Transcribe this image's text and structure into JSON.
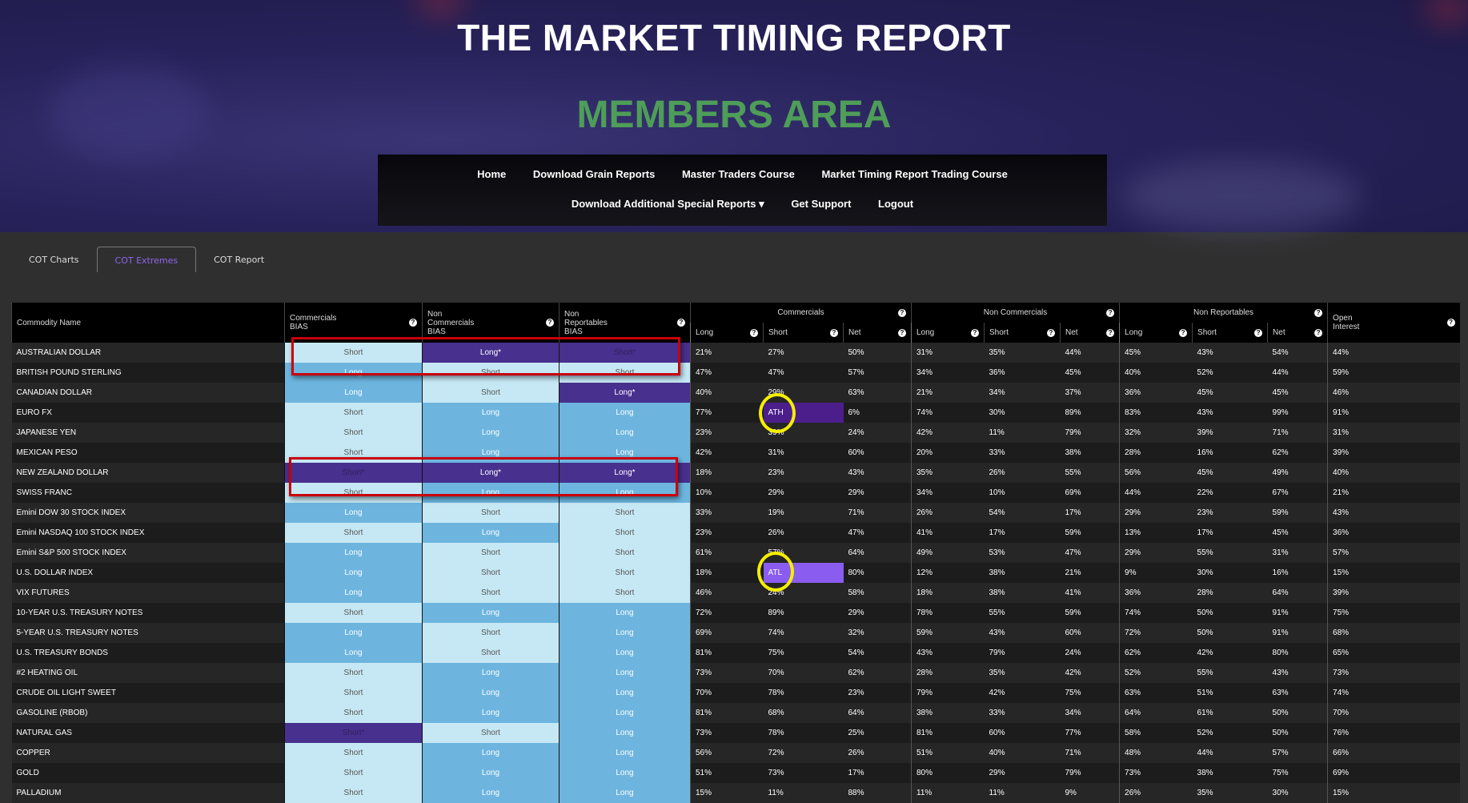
{
  "header": {
    "title": "THE MARKET TIMING REPORT",
    "subtitle": "MEMBERS AREA"
  },
  "nav": {
    "row1": [
      "Home",
      "Download Grain Reports",
      "Master Traders Course",
      "Market Timing Report Trading Course"
    ],
    "row2": [
      "Download Additional Special Reports ▾",
      "Get Support",
      "Logout"
    ]
  },
  "tabs": [
    {
      "label": "COT Charts"
    },
    {
      "label": "COT Extremes",
      "active": true
    },
    {
      "label": "COT Report"
    }
  ],
  "colors": {
    "short": "#c6e8f4",
    "long": "#6db5df",
    "extreme": "#47308e",
    "ath": "#4b1e8c",
    "atl": "#8a5cf0",
    "accent_tab": "#9166ee",
    "members": "#4e9d58"
  },
  "table": {
    "headers": {
      "name": "Commodity Name",
      "comm_bias": "Commercials BIAS",
      "noncomm_bias": "Non Commercials BIAS",
      "nonrep_bias": "Non Reportables BIAS",
      "commercials": "Commercials",
      "noncommercials": "Non Commercials",
      "nonreportables": "Non Reportables",
      "open_interest": "Open Interest",
      "long": "Long",
      "short": "Short",
      "net": "Net",
      "help": "?"
    },
    "rows": [
      {
        "name": "AUSTRALIAN DOLLAR",
        "bias": [
          "Short",
          "Long*",
          "Short*"
        ],
        "pct": [
          "21%",
          "27%",
          "50%",
          "31%",
          "35%",
          "44%",
          "45%",
          "43%",
          "54%",
          "44%"
        ]
      },
      {
        "name": "BRITISH POUND STERLING",
        "bias": [
          "Long",
          "Short",
          "Short"
        ],
        "pct": [
          "47%",
          "47%",
          "57%",
          "34%",
          "36%",
          "45%",
          "40%",
          "52%",
          "44%",
          "59%"
        ]
      },
      {
        "name": "CANADIAN DOLLAR",
        "bias": [
          "Long",
          "Short",
          "Long*"
        ],
        "pct": [
          "40%",
          "29%",
          "63%",
          "21%",
          "34%",
          "37%",
          "36%",
          "45%",
          "45%",
          "46%"
        ]
      },
      {
        "name": "EURO FX",
        "bias": [
          "Short",
          "Long",
          "Long"
        ],
        "pct": [
          "77%",
          "ATH",
          "6%",
          "74%",
          "30%",
          "89%",
          "83%",
          "43%",
          "99%",
          "91%"
        ]
      },
      {
        "name": "JAPANESE YEN",
        "bias": [
          "Short",
          "Long",
          "Long"
        ],
        "pct": [
          "23%",
          "39%",
          "24%",
          "42%",
          "11%",
          "79%",
          "32%",
          "39%",
          "71%",
          "31%"
        ]
      },
      {
        "name": "MEXICAN PESO",
        "bias": [
          "Short",
          "Long",
          "Long"
        ],
        "pct": [
          "42%",
          "31%",
          "60%",
          "20%",
          "33%",
          "38%",
          "28%",
          "16%",
          "62%",
          "39%"
        ]
      },
      {
        "name": "NEW ZEALAND DOLLAR",
        "bias": [
          "Short*",
          "Long*",
          "Long*"
        ],
        "pct": [
          "18%",
          "23%",
          "43%",
          "35%",
          "26%",
          "55%",
          "56%",
          "45%",
          "49%",
          "40%"
        ]
      },
      {
        "name": "SWISS FRANC",
        "bias": [
          "Short",
          "Long",
          "Long"
        ],
        "pct": [
          "10%",
          "29%",
          "29%",
          "34%",
          "10%",
          "69%",
          "44%",
          "22%",
          "67%",
          "21%"
        ]
      },
      {
        "name": "Emini DOW 30 STOCK INDEX",
        "bias": [
          "Long",
          "Short",
          "Short"
        ],
        "pct": [
          "33%",
          "19%",
          "71%",
          "26%",
          "54%",
          "17%",
          "29%",
          "23%",
          "59%",
          "43%"
        ]
      },
      {
        "name": "Emini NASDAQ 100 STOCK INDEX",
        "bias": [
          "Short",
          "Long",
          "Short"
        ],
        "pct": [
          "23%",
          "26%",
          "47%",
          "41%",
          "17%",
          "59%",
          "13%",
          "17%",
          "45%",
          "36%"
        ]
      },
      {
        "name": "Emini S&P 500 STOCK INDEX",
        "bias": [
          "Long",
          "Short",
          "Short"
        ],
        "pct": [
          "61%",
          "57%",
          "64%",
          "49%",
          "53%",
          "47%",
          "29%",
          "55%",
          "31%",
          "57%"
        ]
      },
      {
        "name": "U.S. DOLLAR INDEX",
        "bias": [
          "Long",
          "Short",
          "Short"
        ],
        "pct": [
          "18%",
          "ATL",
          "80%",
          "12%",
          "38%",
          "21%",
          "9%",
          "30%",
          "16%",
          "15%"
        ]
      },
      {
        "name": "VIX FUTURES",
        "bias": [
          "Long",
          "Short",
          "Short"
        ],
        "pct": [
          "46%",
          "24%",
          "58%",
          "18%",
          "38%",
          "41%",
          "36%",
          "28%",
          "64%",
          "39%"
        ]
      },
      {
        "name": "10-YEAR U.S. TREASURY NOTES",
        "bias": [
          "Short",
          "Long",
          "Long"
        ],
        "pct": [
          "72%",
          "89%",
          "29%",
          "78%",
          "55%",
          "59%",
          "74%",
          "50%",
          "91%",
          "75%"
        ]
      },
      {
        "name": "5-YEAR U.S. TREASURY NOTES",
        "bias": [
          "Long",
          "Short",
          "Long"
        ],
        "pct": [
          "69%",
          "74%",
          "32%",
          "59%",
          "43%",
          "60%",
          "72%",
          "50%",
          "91%",
          "68%"
        ]
      },
      {
        "name": "U.S. TREASURY BONDS",
        "bias": [
          "Long",
          "Short",
          "Long"
        ],
        "pct": [
          "81%",
          "75%",
          "54%",
          "43%",
          "79%",
          "24%",
          "62%",
          "42%",
          "80%",
          "65%"
        ]
      },
      {
        "name": "#2 HEATING OIL",
        "bias": [
          "Short",
          "Long",
          "Long"
        ],
        "pct": [
          "73%",
          "70%",
          "62%",
          "28%",
          "35%",
          "42%",
          "52%",
          "55%",
          "43%",
          "73%"
        ]
      },
      {
        "name": "CRUDE OIL LIGHT SWEET",
        "bias": [
          "Short",
          "Long",
          "Long"
        ],
        "pct": [
          "70%",
          "78%",
          "23%",
          "79%",
          "42%",
          "75%",
          "63%",
          "51%",
          "63%",
          "74%"
        ]
      },
      {
        "name": "GASOLINE (RBOB)",
        "bias": [
          "Short",
          "Long",
          "Long"
        ],
        "pct": [
          "81%",
          "68%",
          "64%",
          "38%",
          "33%",
          "34%",
          "64%",
          "61%",
          "50%",
          "70%"
        ]
      },
      {
        "name": "NATURAL GAS",
        "bias": [
          "Short*",
          "Short",
          "Long"
        ],
        "pct": [
          "73%",
          "78%",
          "25%",
          "81%",
          "60%",
          "77%",
          "58%",
          "52%",
          "50%",
          "76%"
        ]
      },
      {
        "name": "COPPER",
        "bias": [
          "Short",
          "Long",
          "Long"
        ],
        "pct": [
          "56%",
          "72%",
          "26%",
          "51%",
          "40%",
          "71%",
          "48%",
          "44%",
          "57%",
          "66%"
        ]
      },
      {
        "name": "GOLD",
        "bias": [
          "Short",
          "Long",
          "Long"
        ],
        "pct": [
          "51%",
          "73%",
          "17%",
          "80%",
          "29%",
          "79%",
          "73%",
          "38%",
          "75%",
          "69%"
        ]
      },
      {
        "name": "PALLADIUM",
        "bias": [
          "Short",
          "Long",
          "Long"
        ],
        "pct": [
          "15%",
          "11%",
          "88%",
          "11%",
          "11%",
          "9%",
          "26%",
          "35%",
          "30%",
          "15%"
        ]
      }
    ]
  }
}
